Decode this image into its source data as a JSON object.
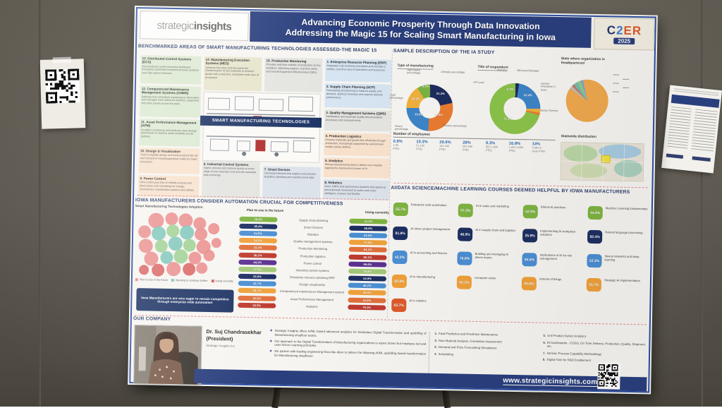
{
  "poster": {
    "logo": {
      "part1": "strategic",
      "part2": "insights"
    },
    "title_line1": "Advancing Economic Prosperity Through Data Innovation",
    "title_line2": "Addressing the Magic 15 for Scaling Smart Manufacturing in Iowa",
    "badge": {
      "l1": "C",
      "l2": "2",
      "l3": "E",
      "l4": "R",
      "year": "2025"
    },
    "footer_url": "www.strategicinsights.com"
  },
  "magic15": {
    "heading": "BENCHMARKED AREAS OF SMART MANUFACTURING TECHNOLOGIES ASSESSED-THE MAGIC 15",
    "center_banner": "SMART MANUFACTURING TECHNOLOGIES",
    "boxes": [
      {
        "title": "13. Distributed Control Systems (DCS)",
        "desc": "Decentralized control elements distributed throughout automated industrial process systems over high-speed networks.",
        "color": "green"
      },
      {
        "title": "12. Computerized Maintenance Management Systems (CMMS)",
        "desc": "Software that centralizes maintenance information and manages work orders for facilities, equipment and other assets across the plant.",
        "color": "green"
      },
      {
        "title": "11. Asset Performance Management (APM)",
        "desc": "Condition monitoring and predictive data through dashboards to improve asset reliability across facilities.",
        "color": "green"
      },
      {
        "title": "10. Design & Visualization",
        "desc": "Tools to digitally design and build products like 3D and immersive virtual/augmented reality for faster innovation.",
        "color": "peach"
      },
      {
        "title": "9. Power Control",
        "desc": "Drive continuous flow of reliable process and plant power with monitoring for energy, environment, visualization systems and utilities.",
        "color": "peach"
      },
      {
        "title": "14. Manufacturing Execution Systems (MES)",
        "desc": "Systems that track and document the transformation of raw materials to finished goods with a real-time, enterprise-wide view of production.",
        "color": "khaki"
      },
      {
        "title": "6. Industrial Control Systems",
        "desc": "Ingest, process and improve quality at every stage of your operation and provide seamless data exchange.",
        "color": "gray"
      },
      {
        "title": "15. Production Monitoring",
        "desc": "Provides real-time visibility of production on the shopfloor, delivering support, real-time alerts and Overall Equipment Effectiveness (OEE).",
        "color": "gray"
      },
      {
        "title": "7. Smart Devices",
        "desc": "Connected devices that capture and process shopfloor operating and machine-level data.",
        "color": "bluegray"
      },
      {
        "title": "1. Enterprise Resource Planning (ERP)",
        "desc": "Integrates core business processes and provides a unified, real-time view of operations and resources.",
        "color": "lblue"
      },
      {
        "title": "2. Supply Chain Planning (SCP)",
        "desc": "Forecasting and planning to balance supply and demand, optimize inventory and improve delivery performance.",
        "color": "lblue"
      },
      {
        "title": "3. Quality Management Systems (QMS)",
        "desc": "Standardize and automate quality documentation, processes and measurements.",
        "color": "gray"
      },
      {
        "title": "4. Production Logistics",
        "desc": "Ensures materials and goods flow efficiently through production, increasingly supported by autonomous mobile robots (AMRs).",
        "color": "peach"
      },
      {
        "title": "5. Analytics",
        "desc": "Mining manufacturing data to deliver new insights, tapping the improvement power of AI.",
        "color": "peach"
      },
      {
        "title": "8. Robotics",
        "desc": "Arms, AMRs and autonomous systems that speed up and automate movement to make work more intelligent, creative and flexible.",
        "color": "bluegray"
      }
    ]
  },
  "adoption": {
    "heading": "IOWA MANUFACTURERS CONSIDER AUTOMATION CRUCIAL FOR COMPETITIVENESS",
    "subheading": "Smart Manufacturing Technologies Adoption",
    "col_future": "Plan to use in the future",
    "col_current": "Using currently",
    "legend": [
      {
        "label": "Plan to use in the future",
        "color": "#e98b8b"
      },
      {
        "label": "Wanting to continue further",
        "color": "#7cc4b8"
      },
      {
        "label": "Using currently",
        "color": "#d95f5f"
      }
    ],
    "callout": "Iowa Manufacturers are very eager to remain competitive through enterprise wide automation",
    "rows": [
      {
        "label": "Supply chain planning",
        "future": "38.8%",
        "current": "41.2%",
        "color": "green"
      },
      {
        "label": "Smart Devices",
        "future": "45.4%",
        "current": "48.9%",
        "color": "navy"
      },
      {
        "label": "Robotics",
        "future": "54.5%",
        "current": "62.6%",
        "color": "blue"
      },
      {
        "label": "Quality management systems",
        "future": "34.3%",
        "current": "73.6%",
        "color": "amber"
      },
      {
        "label": "Production Monitoring",
        "future": "33.3%",
        "current": "84.2%",
        "color": "orangered"
      },
      {
        "label": "Production logistics",
        "future": "38.2%",
        "current": "80.2%",
        "color": "darkred"
      },
      {
        "label": "Power control",
        "future": "44.2%",
        "current": "96.6%",
        "color": "purple"
      },
      {
        "label": "Industrial control systems",
        "future": "27.6%",
        "current": "78.4%",
        "color": "lightgreen"
      },
      {
        "label": "Enterprise resource planning ERP",
        "future": "29.6%",
        "current": "34.9%",
        "color": "navy"
      },
      {
        "label": "Design visualization",
        "future": "43.7%",
        "current": "46.2%",
        "color": "blue"
      },
      {
        "label": "Computerized maintenance Management system",
        "future": "28.7%",
        "current": "39.5%",
        "color": "amber"
      },
      {
        "label": "Asset Performance Management",
        "future": "42.8%",
        "current": "43.8%",
        "color": "orangered"
      },
      {
        "label": "Analytics",
        "future": "29.5%",
        "current": "76.3%",
        "color": "darkred"
      }
    ]
  },
  "sample": {
    "heading": "SAMPLE DESCRIPTION OF THE IA STUDY",
    "groups": [
      {
        "label": "Type of manufacturing"
      },
      {
        "label": "Title of respondent"
      },
      {
        "label": "State where organization is headquartered"
      }
    ],
    "employees": {
      "heading": "Number of employees",
      "cols": [
        {
          "pct": "0.9%",
          "l1": "1-50",
          "l2": "FTEs"
        },
        {
          "pct": "10.3%",
          "l1": "51-100",
          "l2": "FTEs"
        },
        {
          "pct": "29.9%",
          "l1": "101-200",
          "l2": "FTEs"
        },
        {
          "pct": "28%",
          "l1": "201-500",
          "l2": "FTEs"
        },
        {
          "pct": "9.3%",
          "l1": "501-1,000",
          "l2": "FTEs"
        },
        {
          "pct": "16.8%",
          "l1": "1,001-5,000",
          "l2": "FTEs"
        },
        {
          "pct": "14%",
          "l1": "5,001 or",
          "l2": "more FTEs"
        }
      ]
    },
    "map_label": "Statewide distribution"
  },
  "chart_data": [
    {
      "type": "pie",
      "title": "Type of manufacturing",
      "segments": [
        {
          "label": "Agri-based percentage",
          "value": 9.2,
          "display": "9.2%",
          "color": "#7cb342"
        },
        {
          "label": "Lifestyle percentage",
          "value": 21.3,
          "display": "21.3%",
          "color": "#1e2d5e"
        },
        {
          "label": "Process percentage",
          "value": 29.4,
          "display": "29.4%",
          "color": "#e87b30"
        },
        {
          "label": "Heavy percentage",
          "value": 23.9,
          "display": "23.9%",
          "color": "#3d85c8"
        },
        {
          "label": "Light percentage",
          "value": 16.2,
          "display": "16.2%",
          "color": "#f0b03c"
        }
      ]
    },
    {
      "type": "pie",
      "title": "Title of respondent",
      "segments": [
        {
          "label": "Director",
          "value": 2.4,
          "display": "2.4%",
          "color": "#1e2d5e"
        },
        {
          "label": "Mid-level Manager",
          "value": 22.4,
          "display": "22.4%",
          "color": "#3d85c8"
        },
        {
          "label": "Owner/ President/ C-level",
          "value": 2.6,
          "display": "",
          "color": "#f0b03c"
        },
        {
          "label": "Senior Director",
          "value": 1.5,
          "display": "",
          "color": "#e87b30"
        },
        {
          "label": "VP-Level",
          "value": 71.1,
          "display": "71.1%",
          "color": "#8bc34a"
        }
      ]
    },
    {
      "type": "pie",
      "title": "State where organization is headquartered",
      "segments": [
        {
          "label": "",
          "value": 2.5,
          "display": "",
          "color": "#b9bdb6"
        },
        {
          "label": "",
          "value": 1.5,
          "display": "",
          "color": "#d96a5a"
        },
        {
          "label": "",
          "value": 3.5,
          "display": "",
          "color": "#6fbfae"
        },
        {
          "label": "",
          "value": 2.5,
          "display": "",
          "color": "#9cc77e"
        },
        {
          "label": "",
          "value": 2.0,
          "display": "",
          "color": "#7aa9d6"
        },
        {
          "label": "Iowa",
          "value": 88.0,
          "display": "",
          "color": "#f0a84e"
        }
      ]
    }
  ],
  "courses": {
    "heading": "AI/DATA SCIENCE/MACHINE LEARNING COURSES DEEMED HELPFUL BY IOWA MANUFACTURERS",
    "items": [
      {
        "pct": "55.7%",
        "label": "Enterprise wide automation",
        "color": "green"
      },
      {
        "pct": "57.3%",
        "label": "AI in sales and marketing",
        "color": "green"
      },
      {
        "pct": "52.9%",
        "label": "Ethical AI practices",
        "color": "green"
      },
      {
        "pct": "44.9%",
        "label": "Machine Learning fundamentals",
        "color": "green"
      },
      {
        "pct": "81.9%",
        "label": "AI driven project management",
        "color": "navy"
      },
      {
        "pct": "48.9%",
        "label": "AI in supply chain and logistics",
        "color": "navy"
      },
      {
        "pct": "25.9%",
        "label": "Implementing AI workplace solutions",
        "color": "navy"
      },
      {
        "pct": "82.4%",
        "label": "Natural language processing",
        "color": "navy"
      },
      {
        "pct": "42.2%",
        "label": "AI in accounting and finance",
        "color": "blue"
      },
      {
        "pct": "70.8%",
        "label": "Building and managing AI driven teams",
        "color": "blue"
      },
      {
        "pct": "94.6%",
        "label": "Implications of AI for risk management",
        "color": "blue"
      },
      {
        "pct": "52.3%",
        "label": "Neural networks and deep learning",
        "color": "blue"
      },
      {
        "pct": "82.9%",
        "label": "AI in manufacturing",
        "color": "amber"
      },
      {
        "pct": "55.1%",
        "label": "Computer vision",
        "color": "amber"
      },
      {
        "pct": "65.6%",
        "label": "Internet of things",
        "color": "amber"
      },
      {
        "pct": "55.7%",
        "label": "Strategic AI implementation",
        "color": "amber"
      },
      {
        "pct": "62.7%",
        "label": "AI in robotics",
        "color": "red"
      }
    ]
  },
  "company": {
    "heading": "OUR COMPANY",
    "name": "Dr. Suj Chandrasekhar",
    "title": "(President)",
    "org": "Strategic Insights Inc.",
    "bullets": [
      "Strategic Insights offers AI/ML based advanced analytics for Workplace Digital Transformation and upskilling of Manufacturing shopfloor teams.",
      "Our approach to the Digital Transformation of Manufacturing organizations is expert driven but employee led and uses Active Learning principles.",
      "We partner with leading engineering firms like Alten to deliver the following AI/ML upskilling based transformation for Manufacturing shopfloors:"
    ],
    "services": [
      {
        "n": "1.",
        "t": "Fault Prediction and Predictive Maintenance"
      },
      {
        "n": "2.",
        "t": "Raw Material Analysis, Correlation Assessment"
      },
      {
        "n": "3.",
        "t": "Demand and Price Forecasting Simulations"
      },
      {
        "n": "4.",
        "t": "Scheduling"
      },
      {
        "n": "5.",
        "t": "Unit Product Defect Analytics"
      },
      {
        "n": "6.",
        "t": "BI Dashboards - COGS, On Time Delivery, Production, Quality, Shipment, etc."
      },
      {
        "n": "7.",
        "t": "Intrinsic Process Capability Methodology"
      },
      {
        "n": "8.",
        "t": "Digital Twin for R&D Enablement"
      }
    ]
  }
}
